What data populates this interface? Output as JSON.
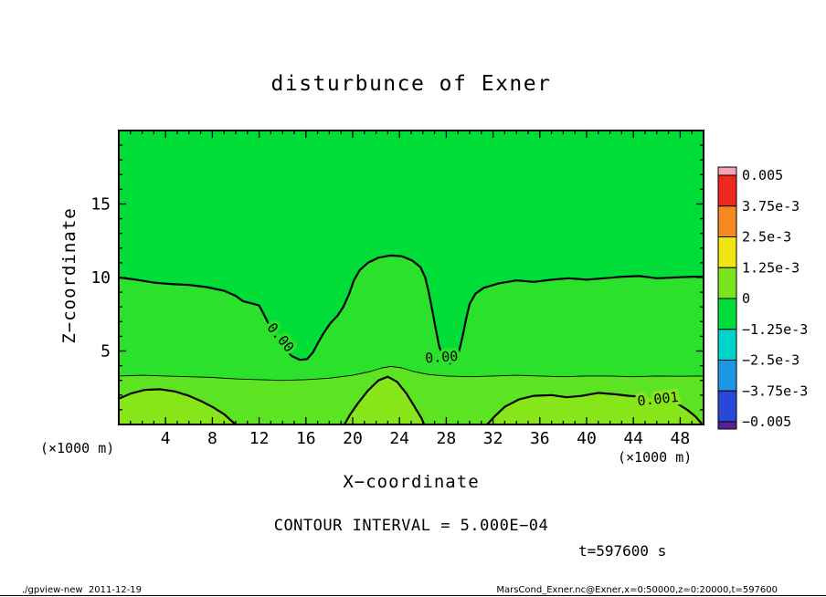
{
  "footer": {
    "left": "./gpview-new  2011-12-19",
    "right": "MarsCond_Exner.nc@Exner,x=0:50000,z=0:20000,t=597600"
  },
  "chart_data": {
    "type": "filled-contour",
    "title": "disturbunce of Exner",
    "xlabel": "X−coordinate",
    "ylabel": "Z−coordinate",
    "x_axis_units": "(×1000 m)",
    "y_axis_units": "(×1000 m)",
    "contour_interval_text": "CONTOUR INTERVAL = 5.000E−04",
    "time_label": "t=597600 s",
    "xlim": [
      0,
      50
    ],
    "ylim": [
      0,
      20
    ],
    "xticks": [
      4,
      8,
      12,
      16,
      20,
      24,
      28,
      32,
      36,
      40,
      44,
      48
    ],
    "yticks": [
      5,
      10,
      15
    ],
    "background_color": "#00dd38",
    "colorbar": {
      "labels": [
        "0.005",
        "3.75e-3",
        "2.5e-3",
        "1.25e-3",
        "0",
        "−1.25e-3",
        "−2.5e-3",
        "−3.75e-3",
        "−0.005"
      ],
      "colors": [
        "#f4a2b4",
        "#ee281e",
        "#f5881e",
        "#f0e414",
        "#7ce41e",
        "#00dd3a",
        "#00d2cc",
        "#1e96e6",
        "#2948d8",
        "#5a1e96"
      ]
    },
    "contour_lines": [
      {
        "level": "0.00",
        "width": 2.2,
        "points": [
          [
            0,
            10
          ],
          [
            1.5,
            9.85
          ],
          [
            3,
            9.65
          ],
          [
            4.5,
            9.55
          ],
          [
            6,
            9.5
          ],
          [
            7.5,
            9.35
          ],
          [
            9,
            9.1
          ],
          [
            10,
            8.75
          ],
          [
            10.6,
            8.4
          ],
          [
            11.3,
            8.25
          ],
          [
            12,
            8.1
          ],
          [
            12.4,
            7.5
          ],
          [
            12.9,
            6.7
          ],
          [
            13.5,
            5.9
          ],
          [
            14.1,
            5.2
          ],
          [
            14.8,
            4.65
          ],
          [
            15.5,
            4.4
          ],
          [
            16.1,
            4.45
          ],
          [
            16.6,
            4.9
          ],
          [
            17,
            5.5
          ],
          [
            17.5,
            6.2
          ],
          [
            18.1,
            6.9
          ],
          [
            18.7,
            7.4
          ],
          [
            19.2,
            8
          ],
          [
            19.7,
            8.9
          ],
          [
            20.1,
            9.8
          ],
          [
            20.6,
            10.5
          ],
          [
            21.3,
            11
          ],
          [
            22.2,
            11.35
          ],
          [
            23.2,
            11.5
          ],
          [
            24.2,
            11.45
          ],
          [
            25.1,
            11.15
          ],
          [
            25.8,
            10.7
          ],
          [
            26.2,
            10
          ],
          [
            26.5,
            9
          ],
          [
            26.8,
            7.8
          ],
          [
            27.1,
            6.5
          ],
          [
            27.4,
            5.3
          ],
          [
            27.8,
            4.5
          ],
          [
            28.3,
            4.15
          ],
          [
            28.8,
            4.35
          ],
          [
            29.1,
            5
          ],
          [
            29.4,
            6
          ],
          [
            29.7,
            7.2
          ],
          [
            30,
            8.2
          ],
          [
            30.5,
            8.9
          ],
          [
            31.2,
            9.3
          ],
          [
            32.5,
            9.6
          ],
          [
            34,
            9.8
          ],
          [
            35.5,
            9.7
          ],
          [
            37,
            9.85
          ],
          [
            38.5,
            9.95
          ],
          [
            40,
            9.85
          ],
          [
            41.5,
            9.95
          ],
          [
            43,
            10.05
          ],
          [
            44.5,
            10.1
          ],
          [
            46,
            9.95
          ],
          [
            47.5,
            10
          ],
          [
            49,
            10.05
          ],
          [
            50,
            10.05
          ]
        ]
      },
      {
        "level": "0.0005",
        "width": 0.9,
        "points": [
          [
            0,
            3.3
          ],
          [
            2,
            3.35
          ],
          [
            4,
            3.3
          ],
          [
            6,
            3.25
          ],
          [
            8,
            3.2
          ],
          [
            10,
            3.1
          ],
          [
            12,
            3.05
          ],
          [
            14,
            3
          ],
          [
            16,
            3.05
          ],
          [
            18,
            3.15
          ],
          [
            20,
            3.35
          ],
          [
            21.5,
            3.6
          ],
          [
            22.5,
            3.85
          ],
          [
            23.3,
            3.95
          ],
          [
            24.2,
            3.85
          ],
          [
            25.2,
            3.6
          ],
          [
            26.5,
            3.4
          ],
          [
            28,
            3.3
          ],
          [
            30,
            3.25
          ],
          [
            32,
            3.3
          ],
          [
            34,
            3.35
          ],
          [
            36,
            3.3
          ],
          [
            38,
            3.25
          ],
          [
            40,
            3.3
          ],
          [
            42,
            3.3
          ],
          [
            44,
            3.25
          ],
          [
            46,
            3.3
          ],
          [
            48,
            3.28
          ],
          [
            50,
            3.3
          ]
        ]
      },
      {
        "level": "0.001",
        "width": 2.2,
        "points": [
          [
            0,
            1.75
          ],
          [
            1,
            2.1
          ],
          [
            2.2,
            2.35
          ],
          [
            3.5,
            2.4
          ],
          [
            4.8,
            2.25
          ],
          [
            6,
            1.95
          ],
          [
            7,
            1.6
          ],
          [
            8,
            1.2
          ],
          [
            9,
            0.7
          ],
          [
            9.7,
            0.2
          ],
          [
            10,
            0
          ]
        ]
      },
      {
        "level": "0.001",
        "width": 2.2,
        "points": [
          [
            19.3,
            0
          ],
          [
            19.8,
            0.7
          ],
          [
            20.5,
            1.5
          ],
          [
            21.3,
            2.3
          ],
          [
            22.2,
            3
          ],
          [
            23,
            3.25
          ],
          [
            23.8,
            2.9
          ],
          [
            24.6,
            2.1
          ],
          [
            25.3,
            1.2
          ],
          [
            25.9,
            0.4
          ],
          [
            26.1,
            0
          ]
        ]
      },
      {
        "level": "0.001",
        "width": 2.2,
        "points": [
          [
            31.5,
            0
          ],
          [
            32.2,
            0.6
          ],
          [
            33,
            1.2
          ],
          [
            34.2,
            1.7
          ],
          [
            35.5,
            1.95
          ],
          [
            37,
            2
          ],
          [
            38.3,
            1.85
          ],
          [
            39.6,
            1.95
          ],
          [
            41,
            2.15
          ],
          [
            42.5,
            2.05
          ],
          [
            43.6,
            1.95
          ],
          [
            44.4,
            1.9
          ]
        ]
      },
      {
        "level": "0.001",
        "width": 2.2,
        "points": [
          [
            47.7,
            1.45
          ],
          [
            48.6,
            1
          ],
          [
            49.3,
            0.55
          ],
          [
            49.8,
            0.1
          ]
        ]
      }
    ],
    "fills": [
      {
        "line": 0,
        "close": [
          [
            50,
            0
          ],
          [
            0,
            0
          ]
        ],
        "color": "#2ce12c"
      },
      {
        "line": 1,
        "close": [
          [
            50,
            0
          ],
          [
            0,
            0
          ]
        ],
        "color": "#5ce322"
      },
      {
        "line": 2,
        "close": [
          [
            0,
            0
          ]
        ],
        "color": "#86e61a"
      },
      {
        "line": 3,
        "close": [],
        "color": "#86e61a"
      },
      {
        "points": [
          [
            31.5,
            0
          ],
          [
            32.2,
            0.6
          ],
          [
            33,
            1.2
          ],
          [
            34.2,
            1.7
          ],
          [
            35.5,
            1.95
          ],
          [
            37,
            2
          ],
          [
            38.3,
            1.85
          ],
          [
            39.6,
            1.95
          ],
          [
            41,
            2.15
          ],
          [
            42.5,
            2.05
          ],
          [
            43.6,
            1.95
          ],
          [
            44.4,
            1.9
          ],
          [
            45.5,
            1.75
          ],
          [
            46.8,
            1.6
          ],
          [
            47.7,
            1.45
          ],
          [
            48.6,
            1
          ],
          [
            49.3,
            0.55
          ],
          [
            49.8,
            0.1
          ],
          [
            49.8,
            0
          ]
        ],
        "color": "#86e61a"
      }
    ],
    "contour_labels": [
      {
        "text": "0.00",
        "x": 13.8,
        "z": 5.9,
        "rot": 50,
        "halo": "#2ce12c"
      },
      {
        "text": "0.00",
        "x": 27.6,
        "z": 4.55,
        "rot": -4,
        "halo": "#2ce12c"
      },
      {
        "text": "0.001",
        "x": 46.1,
        "z": 1.7,
        "rot": -6,
        "halo": "#86e61a"
      }
    ]
  }
}
